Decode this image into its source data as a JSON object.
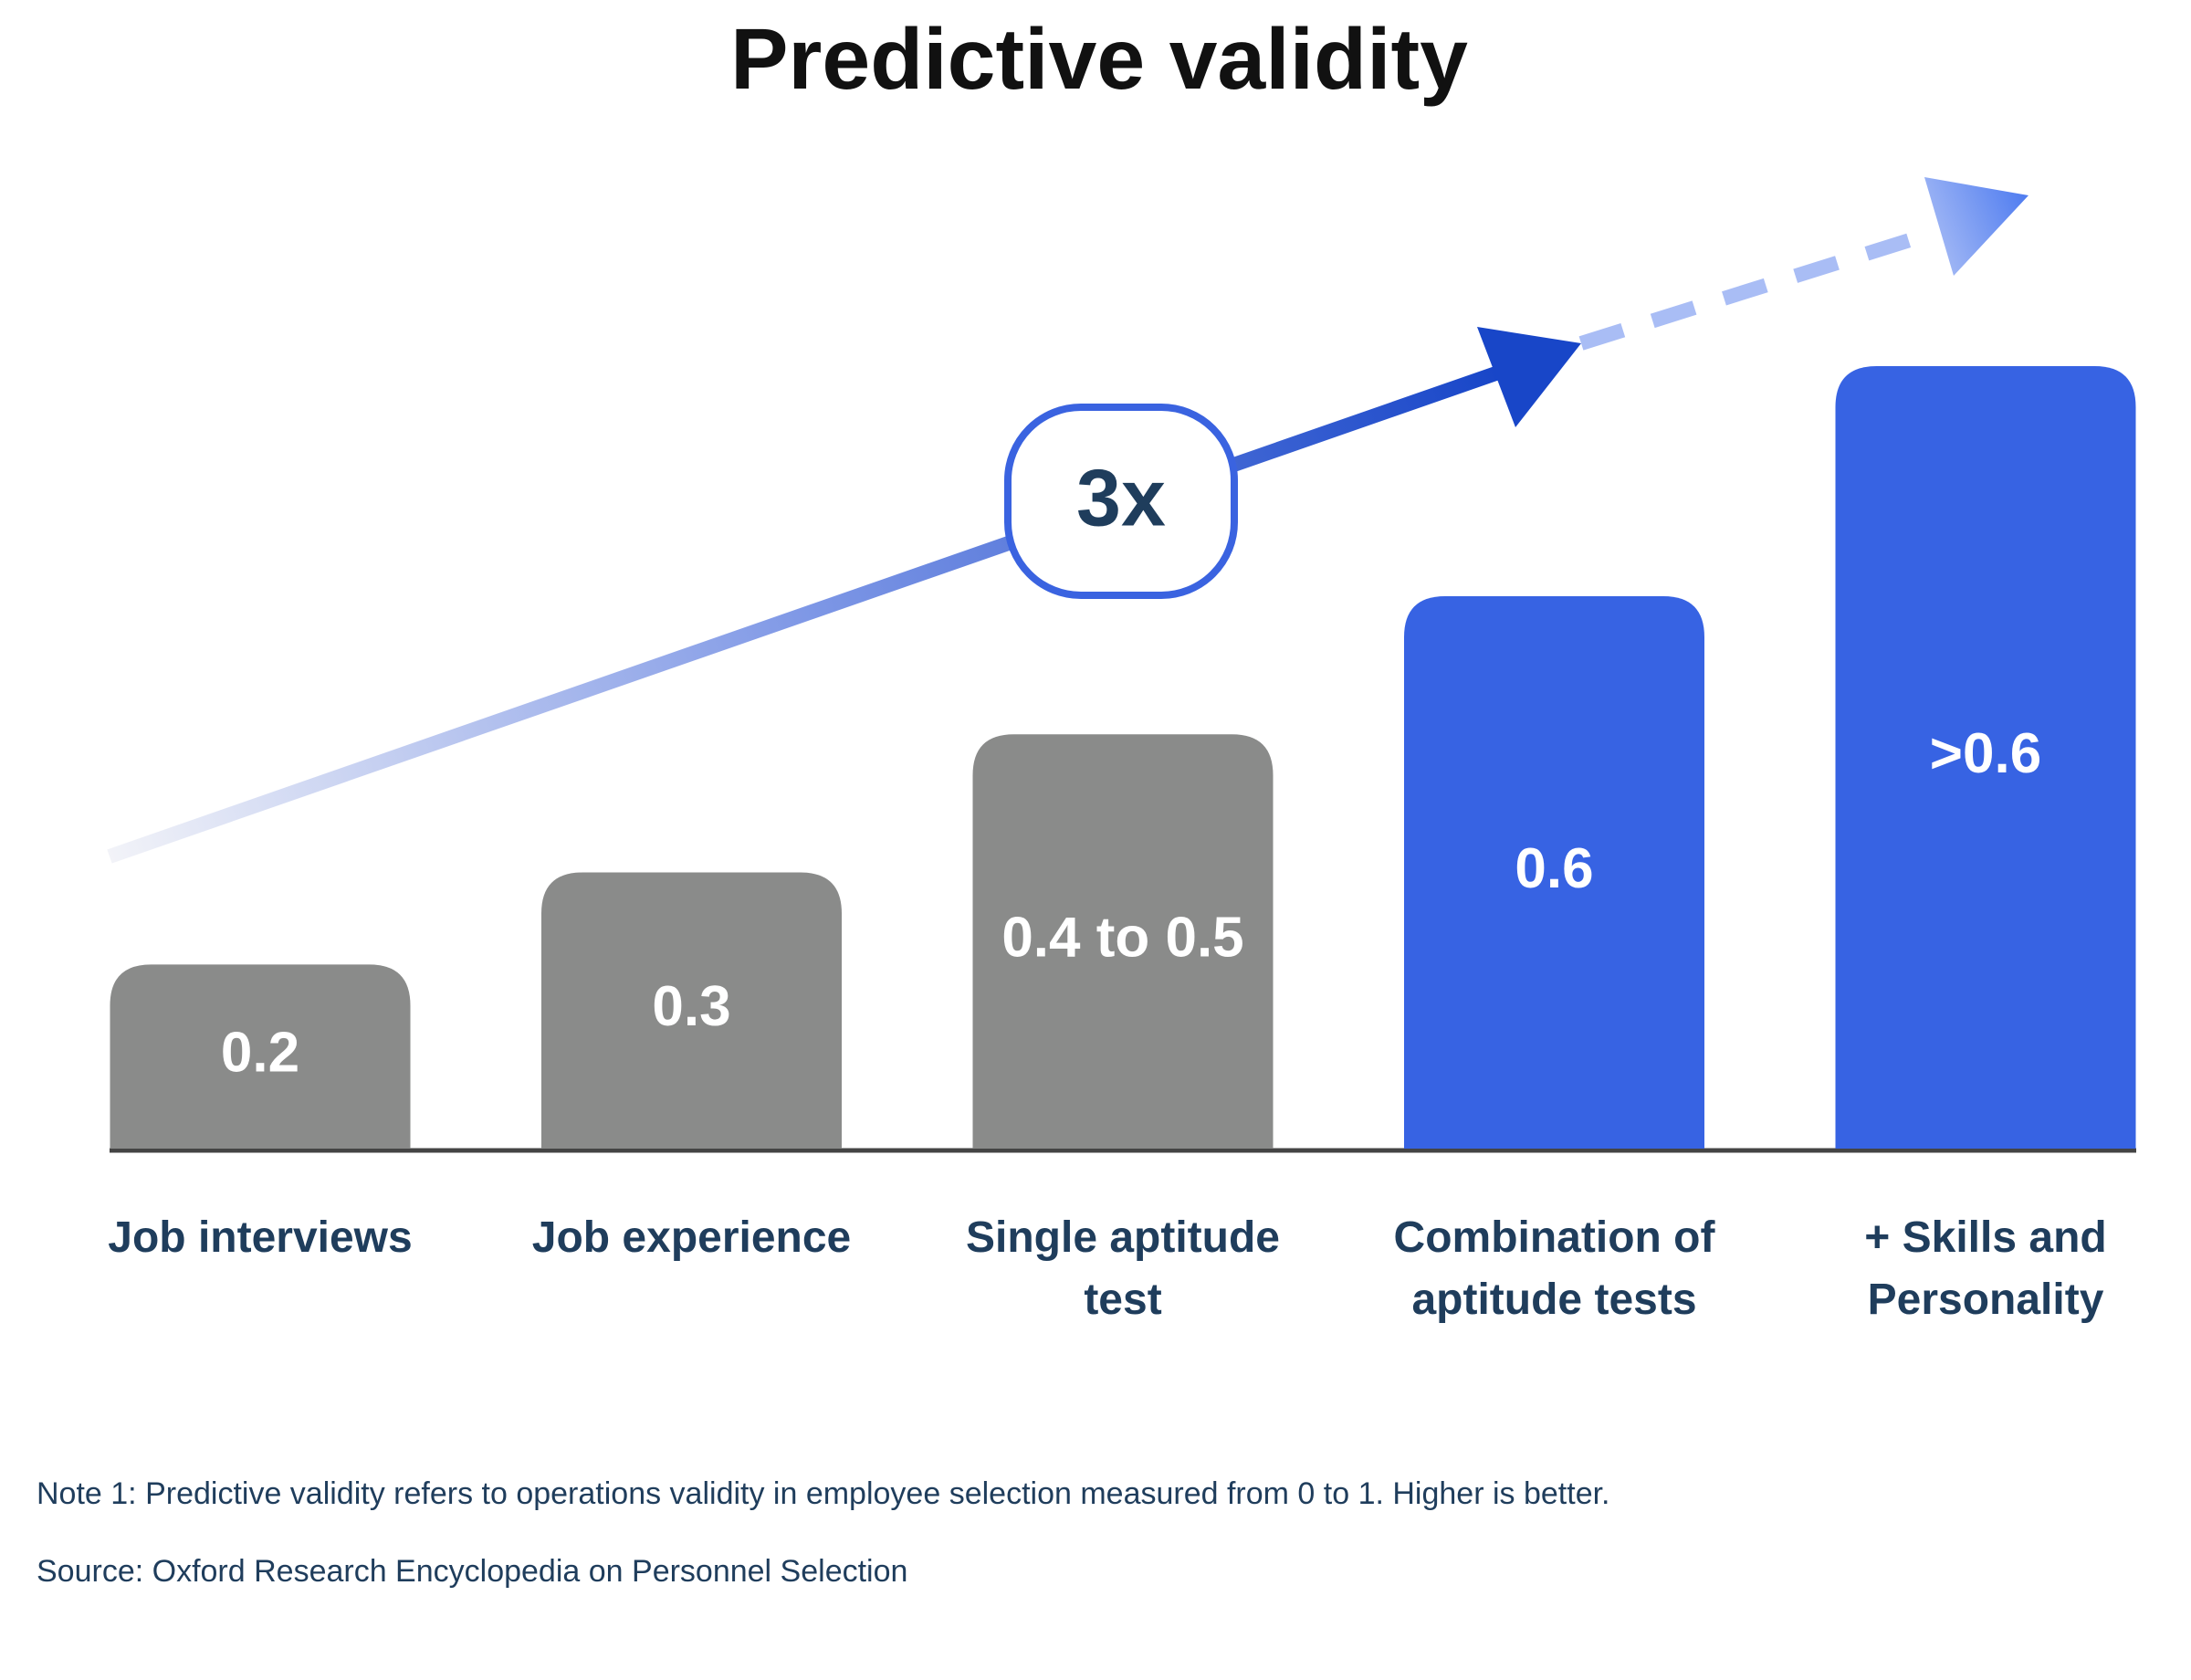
{
  "chart_data": {
    "type": "bar",
    "title": "Predictive validity",
    "categories": [
      "Job interviews",
      "Job experience",
      "Single aptitude test",
      "Combination of aptitude tests",
      "+ Skills and Personality"
    ],
    "values": [
      0.2,
      0.3,
      0.45,
      0.6,
      0.85
    ],
    "value_labels": [
      "0.2",
      "0.3",
      "0.4 to 0.5",
      "0.6",
      ">0.6"
    ],
    "colors": [
      "#8a8b8a",
      "#8a8b8a",
      "#8a8b8a",
      "#3763e3",
      "#3763e3"
    ],
    "annotation": "3x",
    "notes": [
      "Note 1: Predictive validity refers to operations validity in employee selection measured from 0 to 1. Higher is better.",
      "Source: Oxford Research Encyclopedia on Personnel Selection"
    ]
  }
}
